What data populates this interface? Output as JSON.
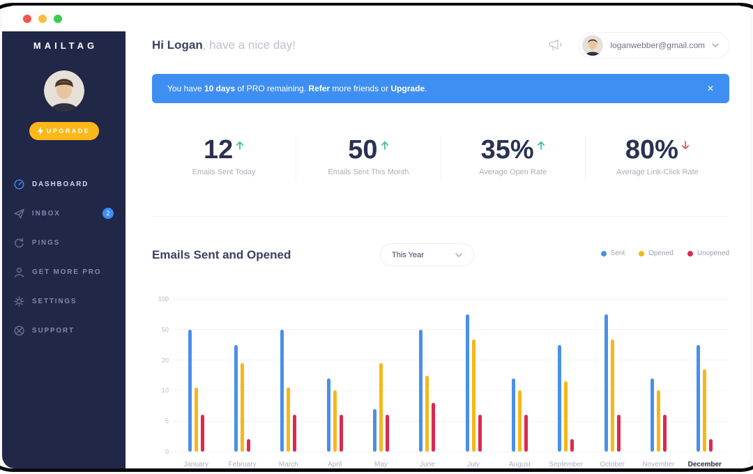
{
  "window": {
    "traffic_lights": [
      {
        "name": "close-light",
        "color": "#F5544D"
      },
      {
        "name": "minimize-light",
        "color": "#FDBC40"
      },
      {
        "name": "zoom-light",
        "color": "#3BCD4B"
      }
    ]
  },
  "sidebar": {
    "logo": "MAILTAG",
    "upgrade_label": "UPGRADE",
    "items": [
      {
        "label": "DASHBOARD",
        "icon": "dashboard-icon",
        "active": true
      },
      {
        "label": "INBOX",
        "icon": "paper-plane-icon",
        "badge": "2"
      },
      {
        "label": "PINGS",
        "icon": "refresh-icon"
      },
      {
        "label": "GET MORE PRO",
        "icon": "person-icon"
      },
      {
        "label": "SETTINGS",
        "icon": "gear-icon"
      },
      {
        "label": "SUPPORT",
        "icon": "support-icon"
      }
    ]
  },
  "header": {
    "greeting_bold": "Hi Logan",
    "greeting_rest": ", have a nice day!",
    "email": "loganwebber@gmail.com"
  },
  "banner": {
    "segments": [
      {
        "text": "You have ",
        "bold": false
      },
      {
        "text": "10 days",
        "bold": true
      },
      {
        "text": " of PRO remaining. ",
        "bold": false
      },
      {
        "text": "Refer",
        "bold": true,
        "name": "refer-link",
        "interactable": true
      },
      {
        "text": " more friends or ",
        "bold": false
      },
      {
        "text": "Upgrade",
        "bold": true,
        "name": "upgrade-link",
        "interactable": true
      },
      {
        "text": ".",
        "bold": false
      }
    ],
    "close_label": "✕"
  },
  "stats": [
    {
      "value": "12",
      "trend": "up",
      "label": "Emails Sent Today"
    },
    {
      "value": "50",
      "trend": "up",
      "label": "Emails Sent This Month"
    },
    {
      "value": "35%",
      "trend": "up",
      "label": "Average Open Rate"
    },
    {
      "value": "80%",
      "trend": "down",
      "label": "Average Link-Click Rate"
    }
  ],
  "chart_section": {
    "title": "Emails Sent and Opened",
    "range_selector": "This Year"
  },
  "chart_data": {
    "type": "bar",
    "title": "Emails Sent and Opened",
    "categories": [
      "January",
      "February",
      "March",
      "April",
      "May",
      "June",
      "July",
      "August",
      "September",
      "October",
      "November",
      "December"
    ],
    "series": [
      {
        "name": "Sent",
        "color": "#4A90E8",
        "values": [
          50,
          35,
          50,
          14,
          7,
          50,
          75,
          14,
          35,
          75,
          14,
          35
        ]
      },
      {
        "name": "Opened",
        "color": "#F7B718",
        "values": [
          11,
          19,
          11,
          10,
          19,
          15,
          40,
          10,
          13,
          40,
          10,
          17
        ]
      },
      {
        "name": "Unopened",
        "color": "#DC2950",
        "values": [
          6,
          2,
          6,
          6,
          6,
          8,
          6,
          6,
          2,
          6,
          6,
          2
        ]
      }
    ],
    "yticks": [
      0,
      5,
      10,
      20,
      50,
      100
    ],
    "ylabel": "",
    "xlabel": "",
    "grid": true,
    "legend_position": "top-right",
    "highlighted_category": "December"
  },
  "colors": {
    "sidebar_bg": "#212747",
    "accent_blue": "#3D8EF7",
    "banner_blue": "#3F8FF2",
    "upgrade_yellow": "#FDB718",
    "trend_up_green": "#35C3A0",
    "trend_down_red": "#E25B5B",
    "navy_text": "#2B3152"
  }
}
